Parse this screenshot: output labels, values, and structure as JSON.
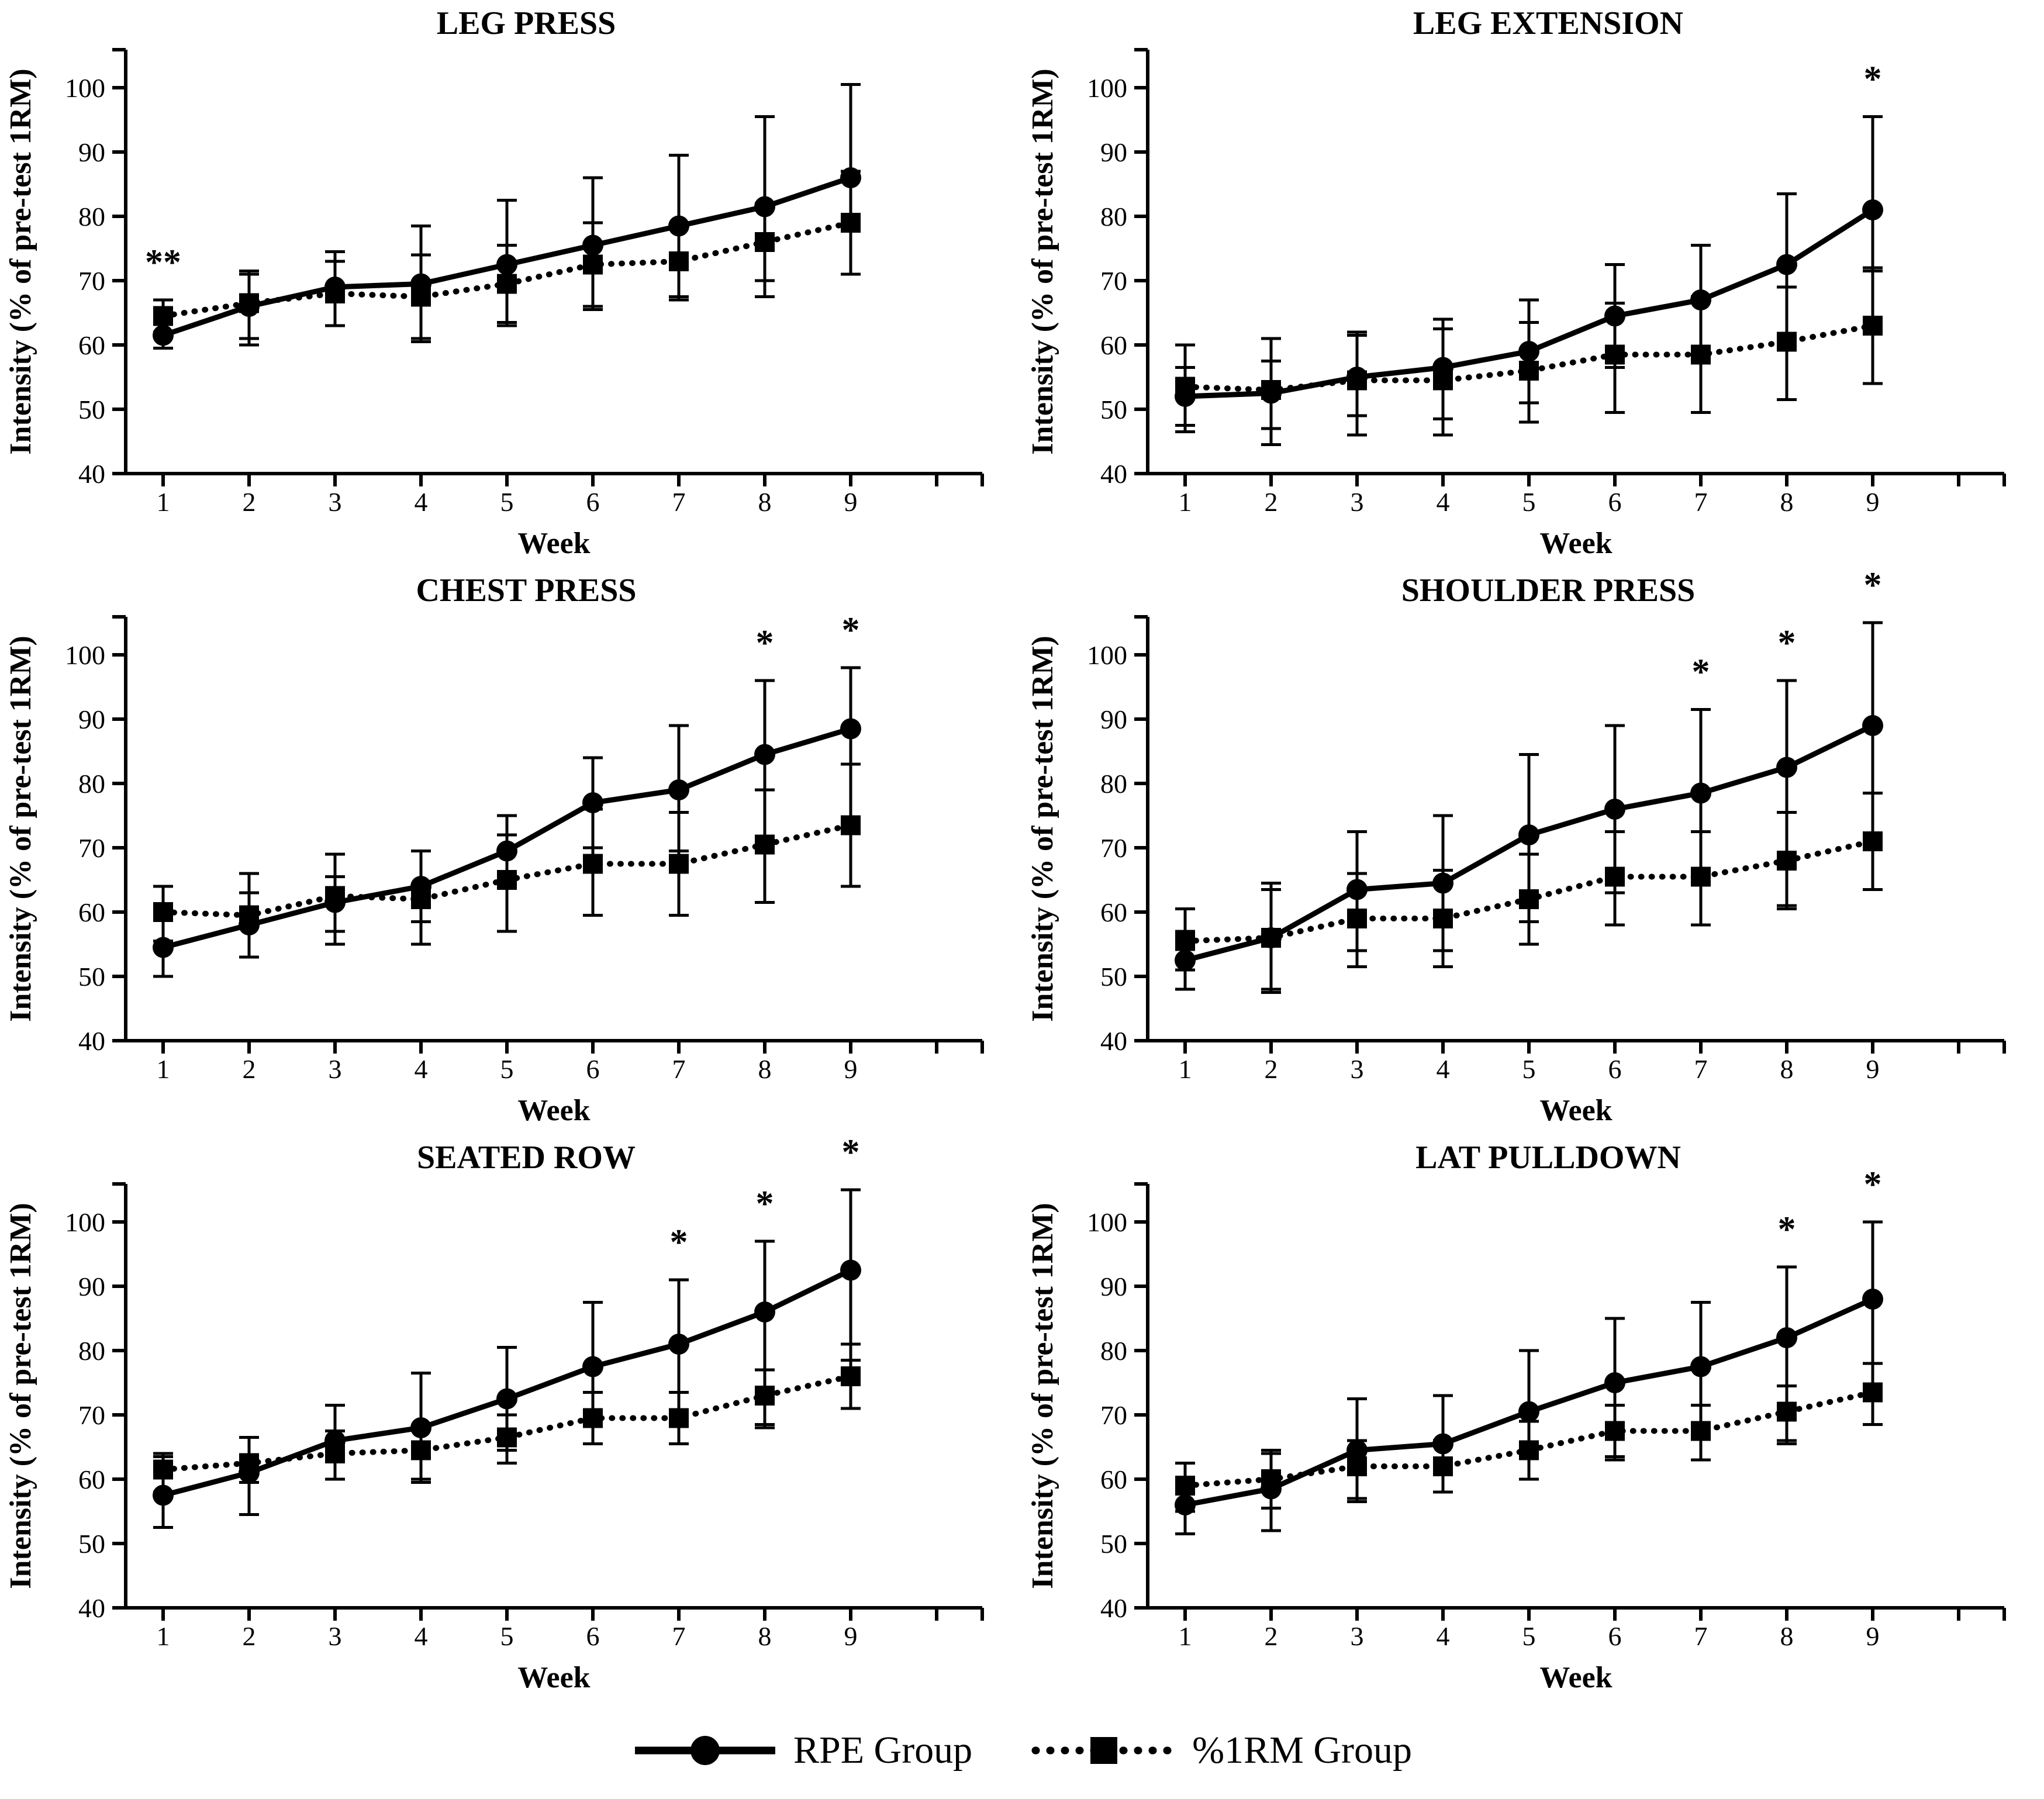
{
  "figure": {
    "background": "#ffffff",
    "ink_color": "#000000",
    "x_axis_label": "Week",
    "y_axis_label": "Intensity (% of pre-test 1RM)"
  },
  "legend": {
    "items": [
      {
        "label": "RPE Group",
        "marker": "circle",
        "line": "solid"
      },
      {
        "label": "%1RM Group",
        "marker": "square",
        "line": "dotted"
      }
    ]
  },
  "chart_data": [
    {
      "type": "line",
      "title": "LEG PRESS",
      "xlabel": "Week",
      "ylabel": "Intensity (% of pre-test 1RM)",
      "x": [
        1,
        2,
        3,
        4,
        5,
        6,
        7,
        8,
        9
      ],
      "ylim": [
        40,
        106
      ],
      "yticks": [
        40,
        50,
        60,
        70,
        80,
        90,
        100
      ],
      "grid": false,
      "series": [
        {
          "name": "RPE Group",
          "marker": "circle",
          "line": "solid",
          "values": [
            61.5,
            66,
            69,
            69.5,
            72.5,
            75.5,
            78.5,
            81.5,
            86
          ],
          "err_lo": [
            59.5,
            60,
            63,
            60.5,
            63,
            65.5,
            67,
            67.5,
            71
          ],
          "err_hi": [
            63.5,
            71.5,
            74.5,
            78.5,
            82.5,
            86,
            89.5,
            95.5,
            100.5
          ]
        },
        {
          "name": "%1RM Group",
          "marker": "square",
          "line": "dotted",
          "values": [
            64.5,
            66.5,
            68,
            67.5,
            69.5,
            72.5,
            73,
            76,
            79
          ],
          "err_lo": [
            62,
            61,
            63,
            61,
            63.5,
            66,
            67.5,
            70,
            71
          ],
          "err_hi": [
            67,
            71,
            73,
            74,
            75.5,
            79,
            78.5,
            82,
            87
          ]
        }
      ],
      "annotations": [
        {
          "week": 1,
          "text": "**"
        }
      ]
    },
    {
      "type": "line",
      "title": "LEG EXTENSION",
      "xlabel": "Week",
      "ylabel": "Intensity (% of pre-test 1RM)",
      "x": [
        1,
        2,
        3,
        4,
        5,
        6,
        7,
        8,
        9
      ],
      "ylim": [
        40,
        106
      ],
      "yticks": [
        40,
        50,
        60,
        70,
        80,
        90,
        100
      ],
      "grid": false,
      "series": [
        {
          "name": "RPE Group",
          "marker": "circle",
          "line": "solid",
          "values": [
            52,
            52.5,
            55,
            56.5,
            59,
            64.5,
            67,
            72.5,
            81
          ],
          "err_lo": [
            47.5,
            47,
            49,
            48.5,
            51,
            56.5,
            58.5,
            61.5,
            71.5
          ],
          "err_hi": [
            56.5,
            57.5,
            61.5,
            62.5,
            63.5,
            72.5,
            75.5,
            83.5,
            95.5
          ]
        },
        {
          "name": "%1RM Group",
          "marker": "square",
          "line": "dotted",
          "values": [
            53.5,
            53,
            54.5,
            54.5,
            56,
            58.5,
            58.5,
            60.5,
            63
          ],
          "err_lo": [
            46.5,
            44.5,
            46,
            46,
            48,
            49.5,
            49.5,
            51.5,
            54
          ],
          "err_hi": [
            60,
            61,
            62,
            64,
            67,
            66.5,
            67.5,
            69,
            72
          ]
        }
      ],
      "annotations": [
        {
          "week": 9,
          "text": "*"
        }
      ]
    },
    {
      "type": "line",
      "title": "CHEST PRESS",
      "xlabel": "Week",
      "ylabel": "Intensity (% of pre-test 1RM)",
      "x": [
        1,
        2,
        3,
        4,
        5,
        6,
        7,
        8,
        9
      ],
      "ylim": [
        40,
        106
      ],
      "yticks": [
        40,
        50,
        60,
        70,
        80,
        90,
        100
      ],
      "grid": false,
      "series": [
        {
          "name": "RPE Group",
          "marker": "circle",
          "line": "solid",
          "values": [
            54.5,
            58,
            61.5,
            64,
            69.5,
            77,
            79,
            84.5,
            88.5
          ],
          "err_lo": [
            50,
            53,
            57,
            58.5,
            64.5,
            70,
            69.5,
            79,
            83
          ],
          "err_hi": [
            59,
            63,
            65.5,
            69.5,
            75,
            84,
            89,
            96,
            98
          ]
        },
        {
          "name": "%1RM Group",
          "marker": "square",
          "line": "dotted",
          "values": [
            60,
            59.5,
            62.5,
            62,
            65,
            67.5,
            67.5,
            70.5,
            73.5
          ],
          "err_lo": [
            55.5,
            53,
            55,
            55,
            57,
            59.5,
            59.5,
            61.5,
            64
          ],
          "err_hi": [
            64,
            66,
            69,
            69.5,
            72,
            76,
            75.5,
            79,
            83
          ]
        }
      ],
      "annotations": [
        {
          "week": 8,
          "text": "*"
        },
        {
          "week": 9,
          "text": "*"
        }
      ]
    },
    {
      "type": "line",
      "title": "SHOULDER PRESS",
      "xlabel": "Week",
      "ylabel": "Intensity (% of pre-test 1RM)",
      "x": [
        1,
        2,
        3,
        4,
        5,
        6,
        7,
        8,
        9
      ],
      "ylim": [
        40,
        106
      ],
      "yticks": [
        40,
        50,
        60,
        70,
        80,
        90,
        100
      ],
      "grid": false,
      "series": [
        {
          "name": "RPE Group",
          "marker": "circle",
          "line": "solid",
          "values": [
            52.5,
            56,
            63.5,
            64.5,
            72,
            76,
            78.5,
            82.5,
            89
          ],
          "err_lo": [
            48,
            48,
            54,
            54,
            58.5,
            63,
            58,
            61,
            78.5
          ],
          "err_hi": [
            57,
            64.5,
            72.5,
            75,
            84.5,
            89,
            91.5,
            96,
            105
          ]
        },
        {
          "name": "%1RM Group",
          "marker": "square",
          "line": "dotted",
          "values": [
            55.5,
            56,
            59,
            59,
            62,
            65.5,
            65.5,
            68,
            71
          ],
          "err_lo": [
            51,
            47.5,
            51.5,
            51.5,
            55,
            58,
            58,
            60.5,
            63.5
          ],
          "err_hi": [
            60.5,
            63.5,
            66,
            66.5,
            69,
            72.5,
            72.5,
            75.5,
            78.5
          ]
        }
      ],
      "annotations": [
        {
          "week": 7,
          "text": "*"
        },
        {
          "week": 8,
          "text": "*"
        },
        {
          "week": 9,
          "text": "*"
        }
      ]
    },
    {
      "type": "line",
      "title": "SEATED ROW",
      "xlabel": "Week",
      "ylabel": "Intensity (% of pre-test 1RM)",
      "x": [
        1,
        2,
        3,
        4,
        5,
        6,
        7,
        8,
        9
      ],
      "ylim": [
        40,
        106
      ],
      "yticks": [
        40,
        50,
        60,
        70,
        80,
        90,
        100
      ],
      "grid": false,
      "series": [
        {
          "name": "RPE Group",
          "marker": "circle",
          "line": "solid",
          "values": [
            57.5,
            61,
            66,
            68,
            72.5,
            77.5,
            81,
            86,
            92.5
          ],
          "err_lo": [
            52.5,
            54.5,
            60,
            60,
            64.5,
            65.5,
            65.5,
            68.5,
            78.5
          ],
          "err_hi": [
            63.5,
            66.5,
            71.5,
            76.5,
            80.5,
            87.5,
            91,
            97,
            105
          ]
        },
        {
          "name": "%1RM Group",
          "marker": "square",
          "line": "dotted",
          "values": [
            61.5,
            62.5,
            64,
            64.5,
            66.5,
            69.5,
            69.5,
            73,
            76
          ],
          "err_lo": [
            58,
            59.5,
            60,
            59.5,
            62.5,
            65.5,
            65.5,
            68,
            71
          ],
          "err_hi": [
            64,
            66.5,
            67.5,
            68,
            70,
            73.5,
            73.5,
            77,
            81
          ]
        }
      ],
      "annotations": [
        {
          "week": 7,
          "text": "*"
        },
        {
          "week": 8,
          "text": "*"
        },
        {
          "week": 9,
          "text": "*"
        }
      ]
    },
    {
      "type": "line",
      "title": "LAT PULLDOWN",
      "xlabel": "Week",
      "ylabel": "Intensity (% of pre-test 1RM)",
      "x": [
        1,
        2,
        3,
        4,
        5,
        6,
        7,
        8,
        9
      ],
      "ylim": [
        40,
        106
      ],
      "yticks": [
        40,
        50,
        60,
        70,
        80,
        90,
        100
      ],
      "grid": false,
      "series": [
        {
          "name": "RPE Group",
          "marker": "circle",
          "line": "solid",
          "values": [
            56,
            58.5,
            64.5,
            65.5,
            70.5,
            75,
            77.5,
            82,
            88
          ],
          "err_lo": [
            51.5,
            52,
            56.5,
            58,
            60,
            63,
            63,
            65.5,
            68.5
          ],
          "err_hi": [
            60,
            64,
            72.5,
            73,
            80,
            85,
            87.5,
            93,
            100
          ]
        },
        {
          "name": "%1RM Group",
          "marker": "square",
          "line": "dotted",
          "values": [
            59,
            60,
            62,
            62,
            64.5,
            67.5,
            67.5,
            70.5,
            73.5
          ],
          "err_lo": [
            55,
            55.5,
            57,
            58,
            60,
            63.5,
            63,
            66,
            68.5
          ],
          "err_hi": [
            62.5,
            64.5,
            66,
            66,
            69,
            71.5,
            71.5,
            74.5,
            78
          ]
        }
      ],
      "annotations": [
        {
          "week": 8,
          "text": "*"
        },
        {
          "week": 9,
          "text": "*"
        }
      ]
    }
  ]
}
